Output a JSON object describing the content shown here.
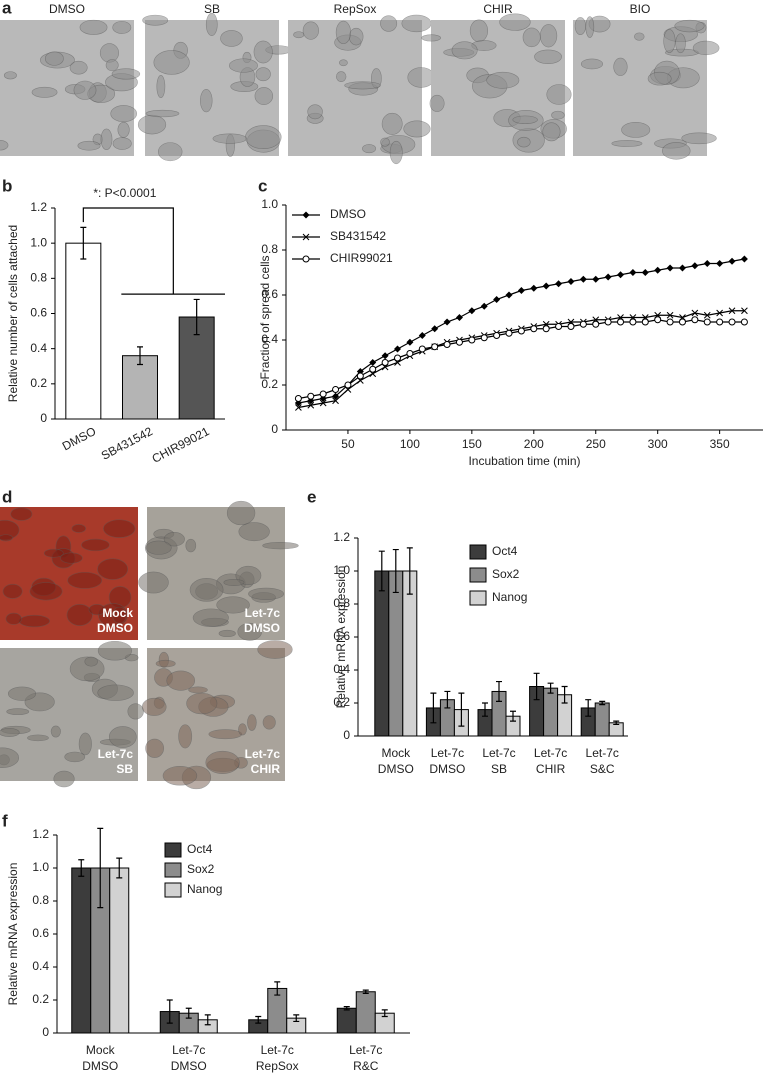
{
  "panels": {
    "a": {
      "label": "a",
      "titles": [
        "DMSO",
        "SB",
        "RepSox",
        "CHIR",
        "BIO"
      ]
    },
    "d": {
      "label": "d",
      "captions": [
        [
          "Mock",
          "DMSO"
        ],
        [
          "Let-7c",
          "DMSO"
        ],
        [
          "Let-7c",
          "SB"
        ],
        [
          "Let-7c",
          "CHIR"
        ]
      ]
    }
  },
  "chart_data": [
    {
      "type": "bar",
      "panel": "b",
      "y_label": "Relative number of cells attached",
      "annotation": "*: P<0.0001",
      "categories": [
        "DMSO",
        "SB431542",
        "CHIR99021"
      ],
      "values": [
        1.0,
        0.36,
        0.58
      ],
      "errors": [
        0.09,
        0.05,
        0.1
      ],
      "colors": [
        "#ffffff",
        "#b4b4b4",
        "#555555"
      ],
      "ylim": [
        0,
        1.2
      ],
      "yticks": [
        0,
        0.2,
        0.4,
        0.6,
        0.8,
        {
          "value": 1,
          "label": "1.0"
        },
        1.2
      ]
    },
    {
      "type": "line",
      "panel": "c",
      "y_label": "Fraction of spread cells",
      "x_label": "Incubation time (min)",
      "x": [
        10,
        20,
        30,
        40,
        50,
        60,
        70,
        80,
        90,
        100,
        110,
        120,
        130,
        140,
        150,
        160,
        170,
        180,
        190,
        200,
        210,
        220,
        230,
        240,
        250,
        260,
        270,
        280,
        290,
        300,
        310,
        320,
        330,
        340,
        350,
        360,
        370
      ],
      "series": [
        {
          "name": "DMSO",
          "color": "#000000",
          "marker": "diamond",
          "values": [
            0.12,
            0.13,
            0.14,
            0.15,
            0.2,
            0.26,
            0.3,
            0.33,
            0.36,
            0.39,
            0.42,
            0.45,
            0.48,
            0.5,
            0.53,
            0.55,
            0.58,
            0.6,
            0.62,
            0.63,
            0.64,
            0.65,
            0.66,
            0.67,
            0.67,
            0.68,
            0.69,
            0.7,
            0.7,
            0.71,
            0.72,
            0.72,
            0.73,
            0.74,
            0.74,
            0.75,
            0.76
          ]
        },
        {
          "name": "SB431542",
          "color": "#000000",
          "marker": "cross",
          "values": [
            0.1,
            0.11,
            0.12,
            0.13,
            0.18,
            0.22,
            0.25,
            0.28,
            0.3,
            0.33,
            0.35,
            0.37,
            0.39,
            0.4,
            0.41,
            0.42,
            0.43,
            0.44,
            0.45,
            0.46,
            0.47,
            0.47,
            0.48,
            0.48,
            0.49,
            0.49,
            0.5,
            0.5,
            0.5,
            0.51,
            0.51,
            0.5,
            0.52,
            0.51,
            0.52,
            0.53,
            0.53
          ]
        },
        {
          "name": "CHIR99021",
          "color": "#000000",
          "marker": "circle",
          "values": [
            0.14,
            0.15,
            0.16,
            0.18,
            0.2,
            0.24,
            0.27,
            0.3,
            0.32,
            0.34,
            0.36,
            0.37,
            0.38,
            0.39,
            0.4,
            0.41,
            0.42,
            0.43,
            0.44,
            0.45,
            0.45,
            0.46,
            0.46,
            0.47,
            0.47,
            0.48,
            0.48,
            0.48,
            0.48,
            0.49,
            0.48,
            0.48,
            0.49,
            0.48,
            0.48,
            0.48,
            0.48
          ]
        }
      ],
      "xlim": [
        0,
        385
      ],
      "xticks": [
        50,
        100,
        150,
        200,
        250,
        300,
        350
      ],
      "ylim": [
        0,
        1
      ],
      "yticks": [
        0,
        0.2,
        0.4,
        0.6,
        0.8,
        {
          "value": 1,
          "label": "1.0"
        }
      ]
    },
    {
      "type": "bar",
      "panel": "e",
      "y_label": "Relative mRNA expression",
      "categories": [
        [
          "Mock",
          "DMSO"
        ],
        [
          "Let-7c",
          "DMSO"
        ],
        [
          "Let-7c",
          "SB"
        ],
        [
          "Let-7c",
          "CHIR"
        ],
        [
          "Let-7c",
          "S&C"
        ]
      ],
      "series": [
        {
          "name": "Oct4",
          "color": "#3c3c3c",
          "values": [
            1.0,
            0.17,
            0.16,
            0.3,
            0.17
          ],
          "errors": [
            0.12,
            0.09,
            0.04,
            0.08,
            0.05
          ]
        },
        {
          "name": "Sox2",
          "color": "#8c8c8c",
          "values": [
            1.0,
            0.22,
            0.27,
            0.29,
            0.2
          ],
          "errors": [
            0.13,
            0.05,
            0.06,
            0.03,
            0.01
          ]
        },
        {
          "name": "Nanog",
          "color": "#d2d2d2",
          "values": [
            1.0,
            0.16,
            0.12,
            0.25,
            0.08
          ],
          "errors": [
            0.14,
            0.1,
            0.03,
            0.05,
            0.01
          ]
        }
      ],
      "ylim": [
        0,
        1.2
      ],
      "yticks": [
        0,
        0.2,
        0.4,
        0.6,
        0.8,
        {
          "value": 1,
          "label": "1.0"
        },
        1.2
      ]
    },
    {
      "type": "bar",
      "panel": "f",
      "y_label": "Relative mRNA expression",
      "categories": [
        [
          "Mock",
          "DMSO"
        ],
        [
          "Let-7c",
          "DMSO"
        ],
        [
          "Let-7c",
          "RepSox"
        ],
        [
          "Let-7c",
          "R&C"
        ]
      ],
      "series": [
        {
          "name": "Oct4",
          "color": "#3c3c3c",
          "values": [
            1.0,
            0.13,
            0.08,
            0.15
          ],
          "errors": [
            0.05,
            0.07,
            0.02,
            0.01
          ]
        },
        {
          "name": "Sox2",
          "color": "#8c8c8c",
          "values": [
            1.0,
            0.12,
            0.27,
            0.25
          ],
          "errors": [
            0.24,
            0.03,
            0.04,
            0.01
          ]
        },
        {
          "name": "Nanog",
          "color": "#d2d2d2",
          "values": [
            1.0,
            0.08,
            0.09,
            0.12
          ],
          "errors": [
            0.06,
            0.03,
            0.02,
            0.02
          ]
        }
      ],
      "ylim": [
        0,
        1.2
      ],
      "yticks": [
        0,
        0.2,
        0.4,
        0.6,
        0.8,
        {
          "value": 1,
          "label": "1.0"
        },
        1.2
      ]
    }
  ]
}
